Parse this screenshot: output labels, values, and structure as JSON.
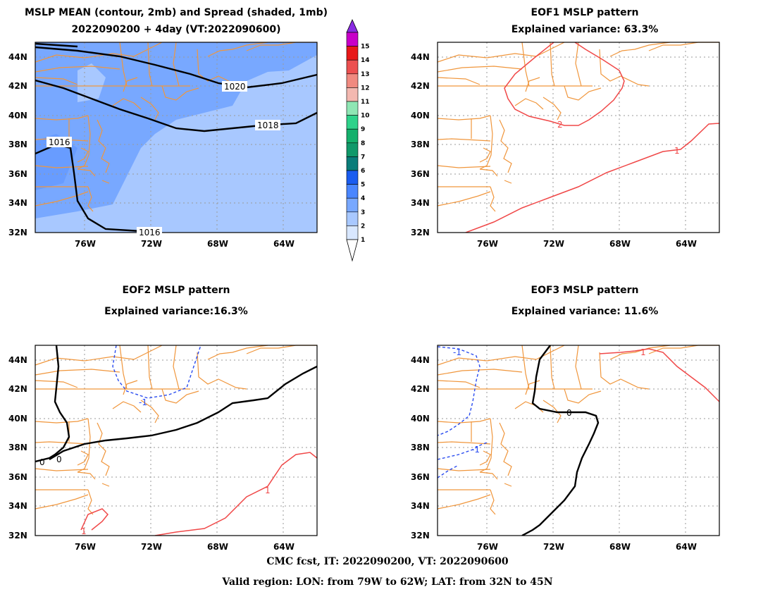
{
  "panel1": {
    "title_line1": "MSLP MEAN (contour, 2mb) and Spread (shaded, 1mb)",
    "title_line2": "2022090200 + 4day (VT:2022090600)",
    "contour_labels": [
      "1020",
      "1018",
      "1016",
      "1016"
    ]
  },
  "panel2": {
    "title_line1": "EOF1 MSLP pattern",
    "title_line2": "Explained variance: 63.3%",
    "contour_labels": [
      "2",
      "1"
    ]
  },
  "panel3": {
    "title_line1": "EOF2 MSLP pattern",
    "title_line2": "Explained variance:16.3%",
    "contour_labels": [
      "0",
      "0",
      "-1",
      "1",
      "1"
    ]
  },
  "panel4": {
    "title_line1": "EOF3 MSLP pattern",
    "title_line2": "Explained variance: 11.6%",
    "contour_labels": [
      "0",
      "-1",
      "-1",
      "1"
    ]
  },
  "axes": {
    "lat_labels": [
      "44N",
      "42N",
      "40N",
      "38N",
      "36N",
      "34N",
      "32N"
    ],
    "lon_labels": [
      "76W",
      "72W",
      "68W",
      "64W"
    ]
  },
  "colorbar": {
    "labels": [
      "1",
      "2",
      "3",
      "4",
      "5",
      "6",
      "7",
      "8",
      "9",
      "10",
      "11",
      "12",
      "13",
      "14",
      "15"
    ],
    "colors": [
      "#d8e7ff",
      "#a8c8ff",
      "#78a8ff",
      "#4a86ff",
      "#1a5cf0",
      "#0a7d7a",
      "#10996a",
      "#14b06c",
      "#2ed28a",
      "#8fe6b4",
      "#f3b8b0",
      "#f08a80",
      "#ec5050",
      "#e81818",
      "#c800c8",
      "#8a2be2"
    ]
  },
  "map_colors": {
    "coast": "#f0963c",
    "positive": "#f04848",
    "negative": "#2a4cf0",
    "zero": "#000000"
  },
  "footer": {
    "line1": "CMC fcst, IT: 2022090200, VT: 2022090600",
    "line2": "Valid region: LON: from 79W to 62W; LAT: from 32N to 45N"
  }
}
